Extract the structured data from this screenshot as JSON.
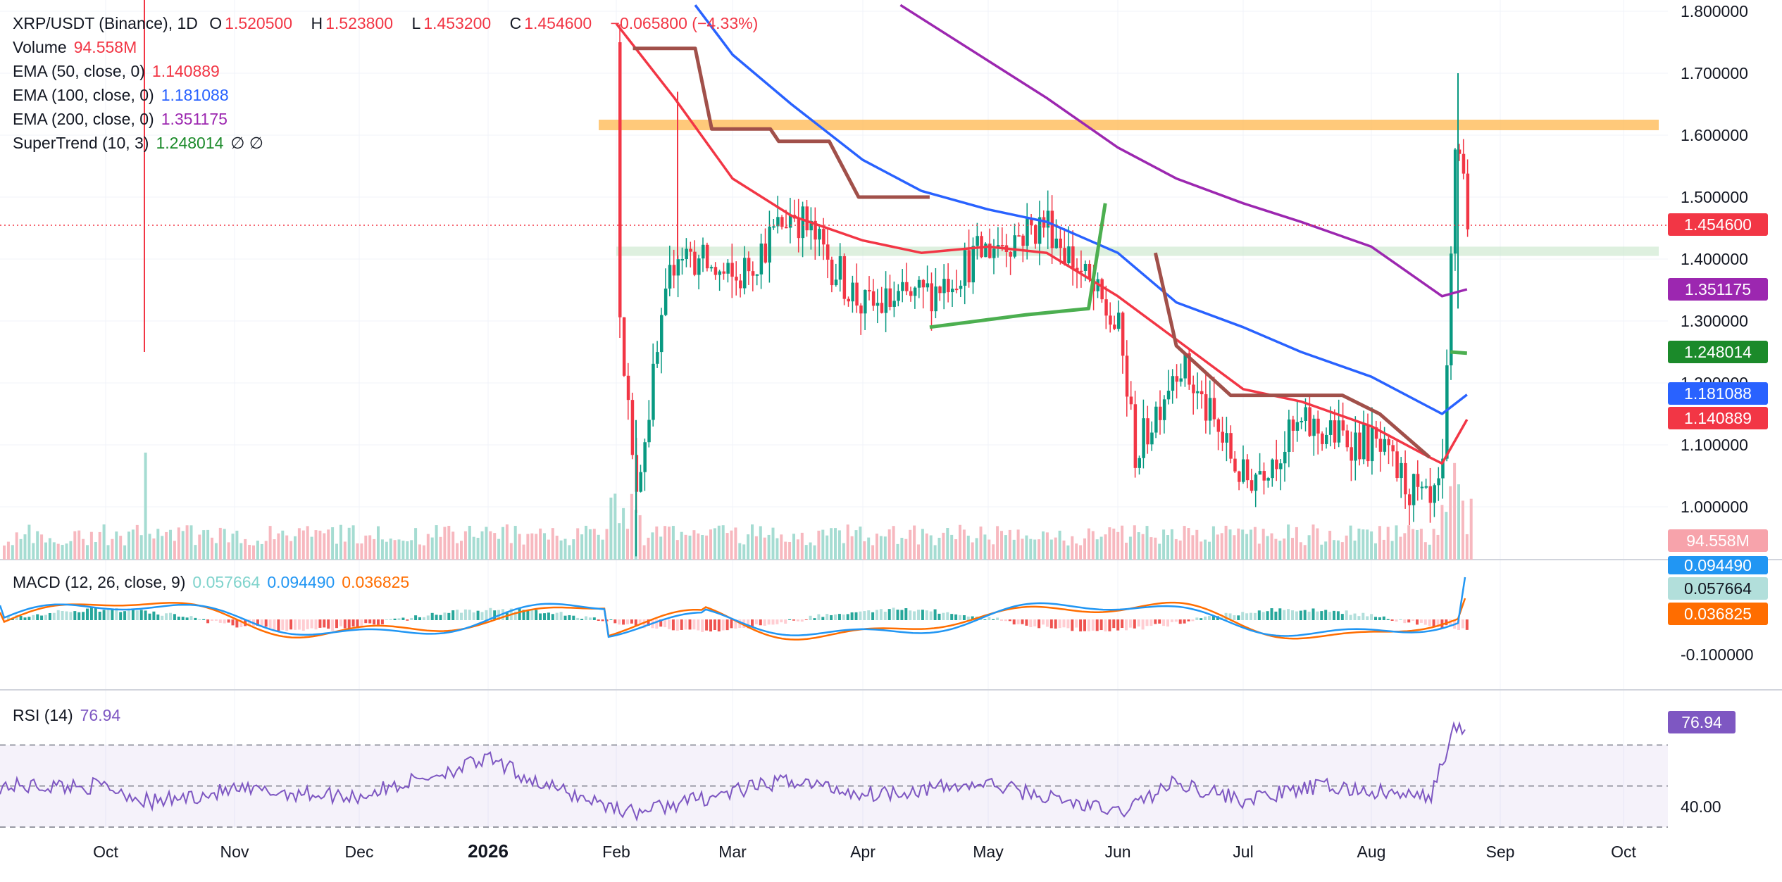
{
  "legend": {
    "symbol": "XRP/USDT (Binance), 1D",
    "ohlc": {
      "o_label": "O",
      "o": "1.520500",
      "h_label": "H",
      "h": "1.523800",
      "l_label": "L",
      "l": "1.453200",
      "c_label": "C",
      "c": "1.454600",
      "change": "−0.065800 (−4.33%)"
    },
    "volume": {
      "label": "Volume",
      "value": "94.558M"
    },
    "ema50": {
      "label": "EMA (50, close, 0)",
      "value": "1.140889"
    },
    "ema100": {
      "label": "EMA (100, close, 0)",
      "value": "1.181088"
    },
    "ema200": {
      "label": "EMA (200, close, 0)",
      "value": "1.351175"
    },
    "supertrend": {
      "label": "SuperTrend (10, 3)",
      "value": "1.248014",
      "extra": "∅  ∅"
    },
    "macd": {
      "label": "MACD (12, 26, close, 9)",
      "hist": "0.057664",
      "macd": "0.094490",
      "signal": "0.036825"
    },
    "rsi": {
      "label": "RSI (14)",
      "value": "76.94"
    }
  },
  "tags": {
    "price": "1.454600",
    "ema200": "1.351175",
    "supertrend": "1.248014",
    "ema100": "1.181088",
    "ema50": "1.140889",
    "volume": "94.558M",
    "macd": "0.094490",
    "hist": "0.057664",
    "signal": "0.036825",
    "rsi": "76.94"
  },
  "colors": {
    "up": "#089981",
    "down": "#f23645",
    "ema50": "#f23645",
    "ema100": "#2962ff",
    "ema200": "#9c27b0",
    "supertrend_up": "#4caf50",
    "supertrend_down": "#a1504a",
    "resistance_zone": "#ffb74d",
    "support_zone": "#c8e6c9",
    "macd": "#2196f3",
    "signal": "#ff6d00",
    "rsi": "#7e57c2"
  },
  "chart_data": [
    {
      "type": "candlestick",
      "title": "XRP/USDT (Binance), 1D",
      "price_axis": {
        "ticks": [
          "1.800000",
          "1.700000",
          "1.600000",
          "1.500000",
          "1.400000",
          "1.300000",
          "1.200000",
          "1.100000",
          "1.000000"
        ],
        "ylim": [
          0.91,
          1.81
        ]
      },
      "time_axis": {
        "ticks": [
          "Oct",
          "Nov",
          "Dec",
          "2026",
          "Feb",
          "Mar",
          "Apr",
          "May",
          "Jun",
          "Jul",
          "Aug",
          "Sep",
          "Oct"
        ]
      },
      "zones": [
        {
          "name": "resistance",
          "from": 1.608,
          "to": 1.625
        },
        {
          "name": "support",
          "from": 1.405,
          "to": 1.42
        }
      ],
      "price_line": 1.4546,
      "series": [
        {
          "name": "price",
          "monthly_path": [
            {
              "x": "2026-02-01",
              "y": 1.38
            },
            {
              "x": "2026-02-05",
              "y": 1.02
            },
            {
              "x": "2026-02-15",
              "y": 1.42
            },
            {
              "x": "2026-03-01",
              "y": 1.36
            },
            {
              "x": "2026-03-15",
              "y": 1.48
            },
            {
              "x": "2026-04-01",
              "y": 1.32
            },
            {
              "x": "2026-04-15",
              "y": 1.34
            },
            {
              "x": "2026-05-01",
              "y": 1.42
            },
            {
              "x": "2026-05-15",
              "y": 1.46
            },
            {
              "x": "2026-06-01",
              "y": 1.28
            },
            {
              "x": "2026-06-05",
              "y": 1.08
            },
            {
              "x": "2026-06-15",
              "y": 1.24
            },
            {
              "x": "2026-07-01",
              "y": 1.04
            },
            {
              "x": "2026-07-15",
              "y": 1.13
            },
            {
              "x": "2026-08-01",
              "y": 1.1
            },
            {
              "x": "2026-08-15",
              "y": 0.99
            },
            {
              "x": "2026-08-18",
              "y": 1.05
            },
            {
              "x": "2026-08-21",
              "y": 1.62
            },
            {
              "x": "2026-08-23",
              "y": 1.52
            },
            {
              "x": "2026-08-24",
              "y": 1.4546
            }
          ]
        },
        {
          "name": "EMA (50, close, 0)",
          "points": [
            {
              "x": "2026-02-01",
              "y": 1.78
            },
            {
              "x": "2026-02-15",
              "y": 1.66
            },
            {
              "x": "2026-03-01",
              "y": 1.53
            },
            {
              "x": "2026-03-15",
              "y": 1.47
            },
            {
              "x": "2026-04-01",
              "y": 1.43
            },
            {
              "x": "2026-04-15",
              "y": 1.41
            },
            {
              "x": "2026-05-01",
              "y": 1.42
            },
            {
              "x": "2026-05-15",
              "y": 1.41
            },
            {
              "x": "2026-06-01",
              "y": 1.34
            },
            {
              "x": "2026-06-15",
              "y": 1.27
            },
            {
              "x": "2026-07-01",
              "y": 1.19
            },
            {
              "x": "2026-07-15",
              "y": 1.17
            },
            {
              "x": "2026-08-01",
              "y": 1.13
            },
            {
              "x": "2026-08-15",
              "y": 1.08
            },
            {
              "x": "2026-08-18",
              "y": 1.07
            },
            {
              "x": "2026-08-24",
              "y": 1.140889
            }
          ]
        },
        {
          "name": "EMA (100, close, 0)",
          "points": [
            {
              "x": "2026-02-20",
              "y": 1.81
            },
            {
              "x": "2026-03-01",
              "y": 1.73
            },
            {
              "x": "2026-03-15",
              "y": 1.65
            },
            {
              "x": "2026-04-01",
              "y": 1.56
            },
            {
              "x": "2026-04-15",
              "y": 1.51
            },
            {
              "x": "2026-05-01",
              "y": 1.48
            },
            {
              "x": "2026-05-15",
              "y": 1.46
            },
            {
              "x": "2026-06-01",
              "y": 1.41
            },
            {
              "x": "2026-06-15",
              "y": 1.33
            },
            {
              "x": "2026-07-01",
              "y": 1.29
            },
            {
              "x": "2026-07-15",
              "y": 1.25
            },
            {
              "x": "2026-08-01",
              "y": 1.21
            },
            {
              "x": "2026-08-18",
              "y": 1.15
            },
            {
              "x": "2026-08-24",
              "y": 1.181088
            }
          ]
        },
        {
          "name": "EMA (200, close, 0)",
          "points": [
            {
              "x": "2026-04-10",
              "y": 1.81
            },
            {
              "x": "2026-05-01",
              "y": 1.72
            },
            {
              "x": "2026-05-15",
              "y": 1.66
            },
            {
              "x": "2026-06-01",
              "y": 1.58
            },
            {
              "x": "2026-06-15",
              "y": 1.53
            },
            {
              "x": "2026-07-01",
              "y": 1.49
            },
            {
              "x": "2026-07-15",
              "y": 1.46
            },
            {
              "x": "2026-08-01",
              "y": 1.42
            },
            {
              "x": "2026-08-18",
              "y": 1.34
            },
            {
              "x": "2026-08-24",
              "y": 1.351175
            }
          ]
        },
        {
          "name": "SuperTrend (10, 3)",
          "points": [
            {
              "x": "2026-02-05",
              "y": 1.74
            },
            {
              "x": "2026-02-20",
              "y": 1.74
            },
            {
              "x": "2026-02-24",
              "y": 1.61
            },
            {
              "x": "2026-03-10",
              "y": 1.61
            },
            {
              "x": "2026-03-12",
              "y": 1.59
            },
            {
              "x": "2026-03-24",
              "y": 1.59
            },
            {
              "x": "2026-03-31",
              "y": 1.5
            },
            {
              "x": "2026-04-17",
              "y": 1.5
            },
            {
              "x": "2026-04-17",
              "y": 1.29
            },
            {
              "x": "2026-05-10",
              "y": 1.31
            },
            {
              "x": "2026-05-25",
              "y": 1.32
            },
            {
              "x": "2026-05-29",
              "y": 1.49
            },
            {
              "x": "2026-06-10",
              "y": 1.41
            },
            {
              "x": "2026-06-15",
              "y": 1.26
            },
            {
              "x": "2026-06-28",
              "y": 1.18
            },
            {
              "x": "2026-07-25",
              "y": 1.18
            },
            {
              "x": "2026-08-03",
              "y": 1.15
            },
            {
              "x": "2026-08-15",
              "y": 1.08
            },
            {
              "x": "2026-08-20",
              "y": 1.25
            },
            {
              "x": "2026-08-24",
              "y": 1.248014
            }
          ]
        }
      ]
    },
    {
      "type": "bar",
      "title": "Volume",
      "latest": "94.558M"
    },
    {
      "type": "line",
      "title": "MACD (12, 26, close, 9)",
      "ticks": [
        "-0.100000"
      ],
      "latest": {
        "histogram": 0.057664,
        "macd": 0.09449,
        "signal": 0.036825
      }
    },
    {
      "type": "line",
      "title": "RSI (14)",
      "ticks": [
        "40.00"
      ],
      "latest": 76.94,
      "points": [
        {
          "x": "2025-10-01",
          "y": 50
        },
        {
          "x": "2025-10-12",
          "y": 42
        },
        {
          "x": "2025-11-01",
          "y": 48
        },
        {
          "x": "2025-12-01",
          "y": 45
        },
        {
          "x": "2026-01-01",
          "y": 63
        },
        {
          "x": "2026-01-15",
          "y": 50
        },
        {
          "x": "2026-02-05",
          "y": 37
        },
        {
          "x": "2026-03-15",
          "y": 53
        },
        {
          "x": "2026-04-01",
          "y": 46
        },
        {
          "x": "2026-05-01",
          "y": 51
        },
        {
          "x": "2026-06-01",
          "y": 37
        },
        {
          "x": "2026-06-15",
          "y": 52
        },
        {
          "x": "2026-07-01",
          "y": 43
        },
        {
          "x": "2026-07-20",
          "y": 50
        },
        {
          "x": "2026-08-15",
          "y": 44
        },
        {
          "x": "2026-08-21",
          "y": 78
        },
        {
          "x": "2026-08-24",
          "y": 76.94
        }
      ]
    }
  ]
}
